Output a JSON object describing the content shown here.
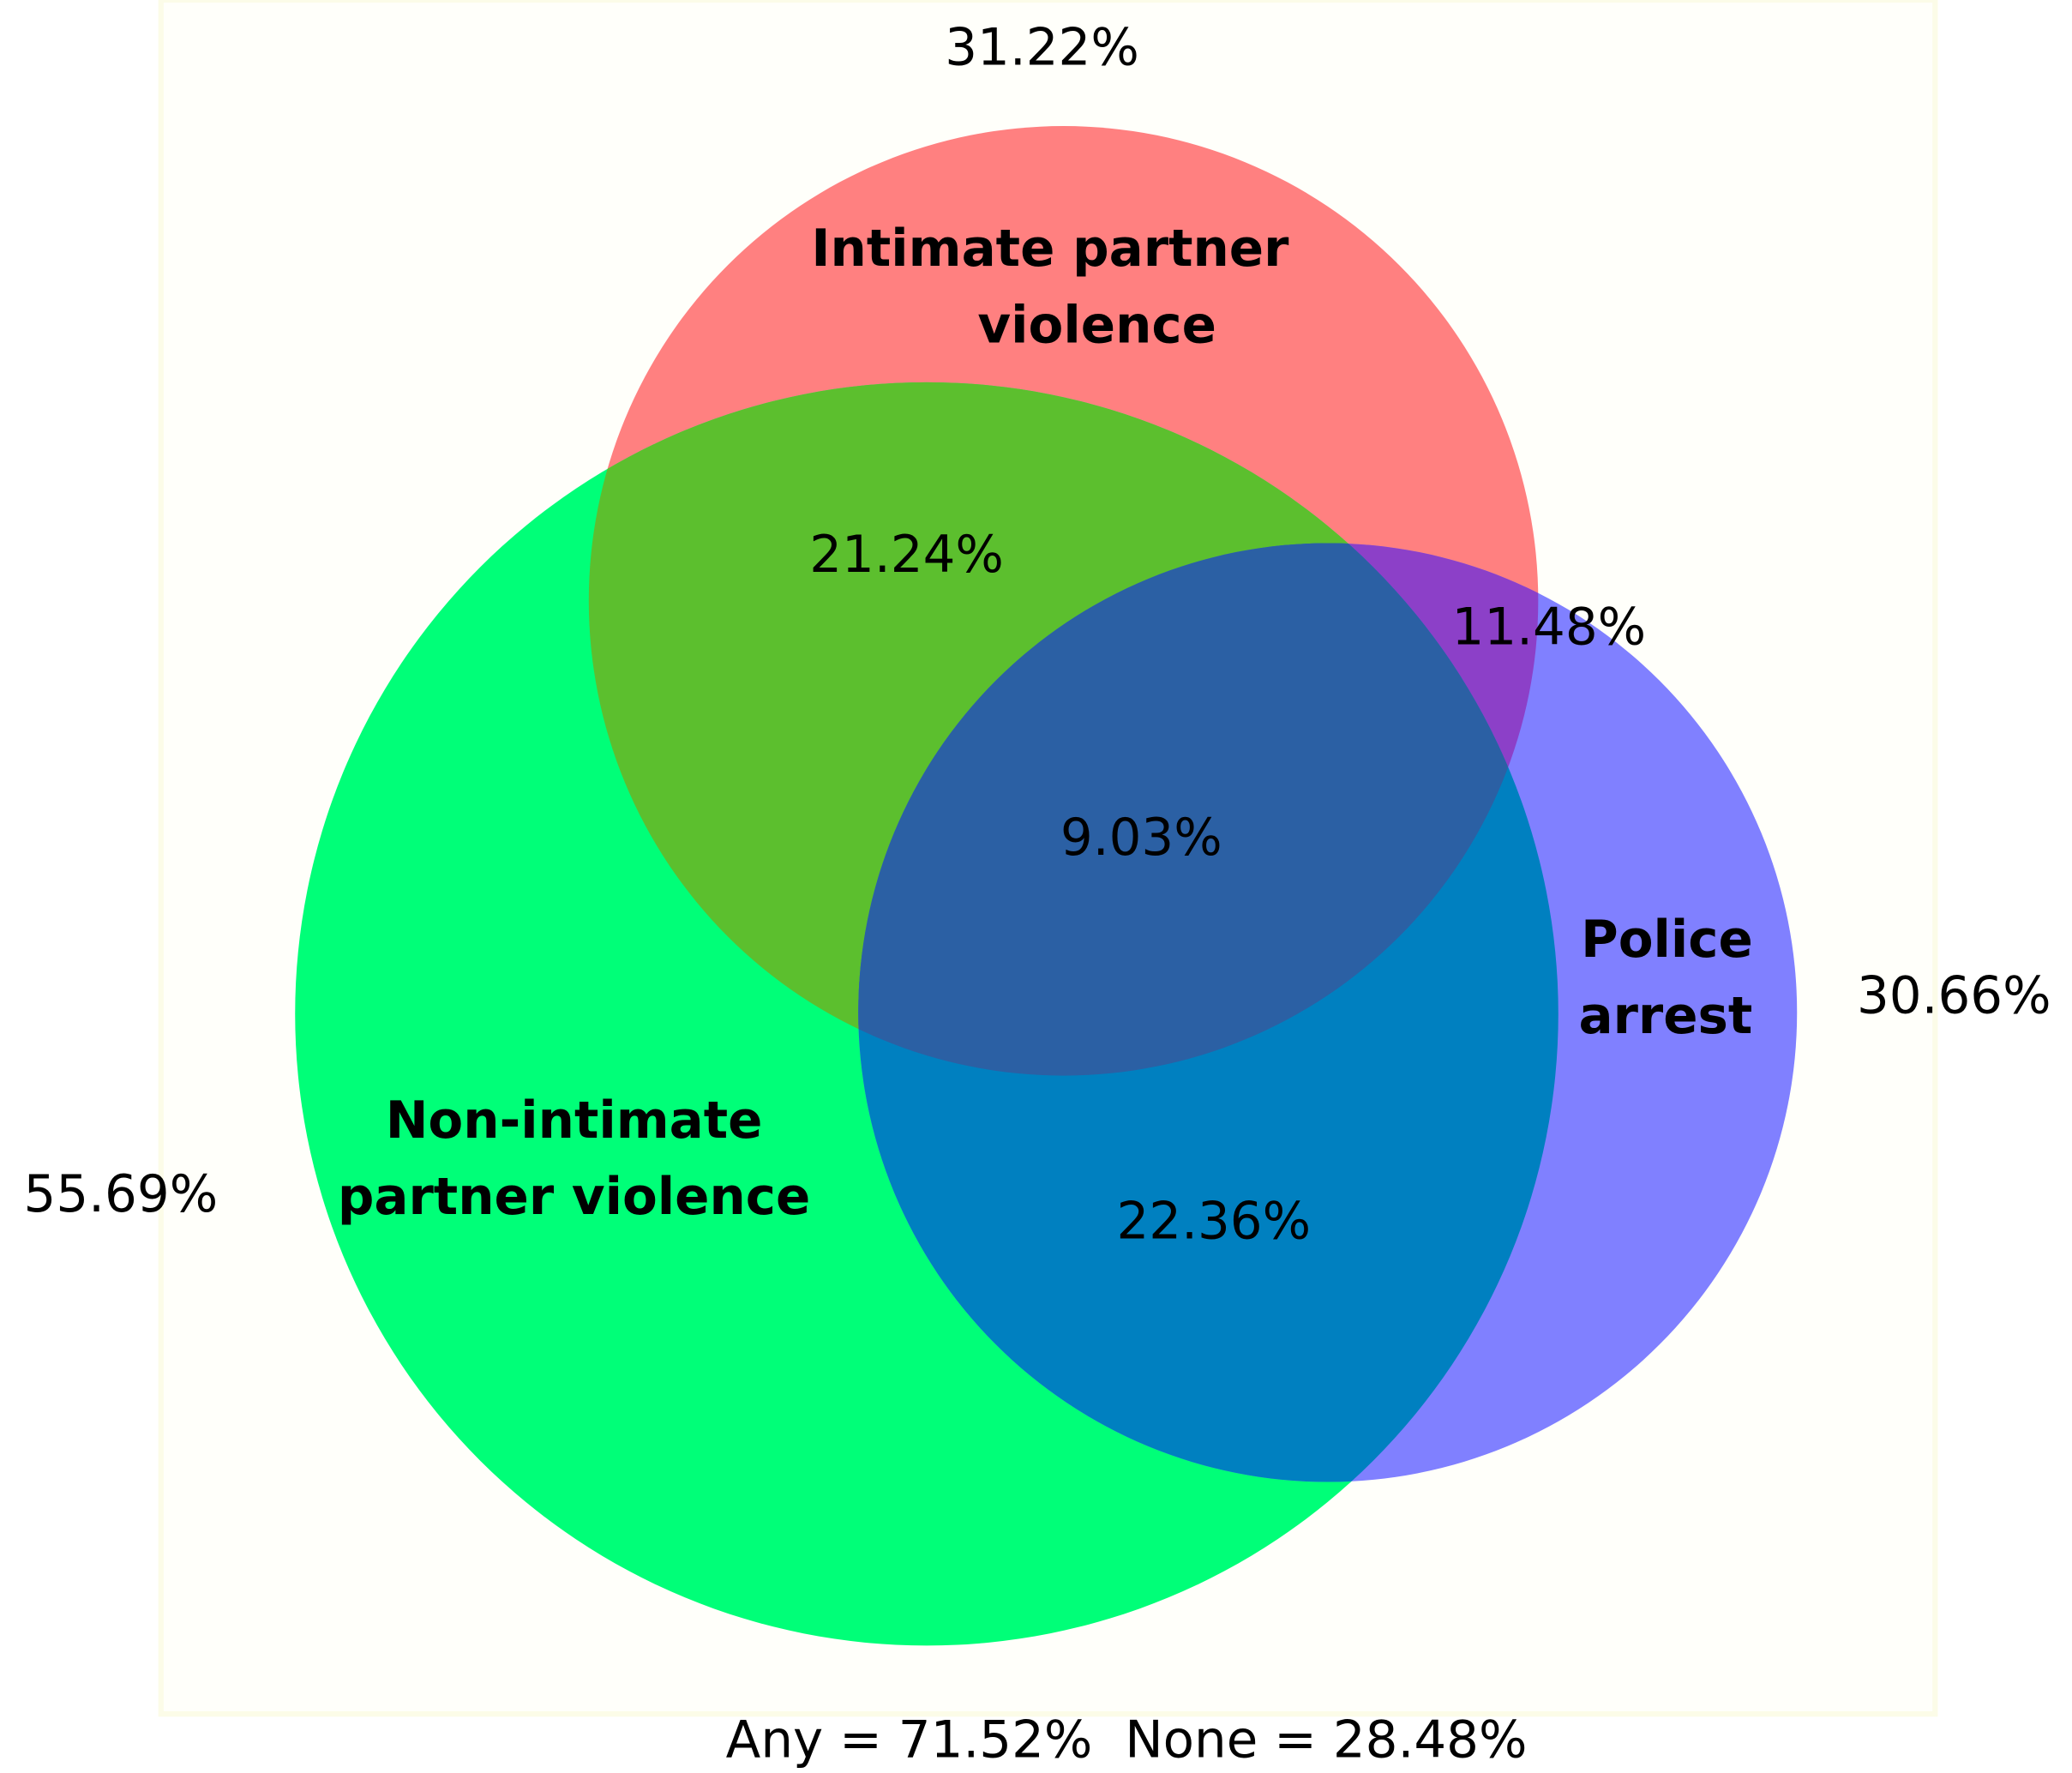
{
  "sets": [
    {
      "name_lines": [
        "Intimate partner",
        "violence"
      ],
      "total": "31.22%"
    },
    {
      "name_lines": [
        "Non-intimate",
        "partner violence"
      ],
      "total": "55.69%"
    },
    {
      "name_lines": [
        "Police",
        "arrest"
      ],
      "total": "30.66%"
    }
  ],
  "regions": {
    "ipv_and_nonipv": "21.24%",
    "ipv_and_police": "11.48%",
    "all_three": "9.03%",
    "nonipv_and_police": "22.36%"
  },
  "footer": "Any = 71.52%  None = 28.48%"
}
